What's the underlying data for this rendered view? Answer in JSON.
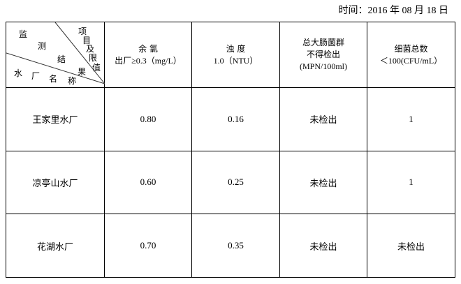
{
  "date": {
    "label": "时间：",
    "value": "2016 年 08 月 18 日"
  },
  "corner": {
    "chars_top": [
      "监",
      "测",
      "结",
      "果"
    ],
    "chars_right": [
      "项",
      "目",
      "及",
      "限",
      "值"
    ],
    "chars_bottom": [
      "水",
      "厂",
      "名",
      "称"
    ]
  },
  "headers": [
    {
      "line1": "余 氯",
      "line2": "出厂≥0.3（mg/L）"
    },
    {
      "line1": "浊 度",
      "line2": "1.0（NTU）"
    },
    {
      "line1": "总大肠菌群",
      "line2": "不得检出",
      "line3": "(MPN/100ml)"
    },
    {
      "line1": "细菌总数",
      "line2": "＜100(CFU/mL）"
    }
  ],
  "rows": [
    {
      "name": "王家里水厂",
      "values": [
        "0.80",
        "0.16",
        "未检出",
        "1"
      ]
    },
    {
      "name": "凉亭山水厂",
      "values": [
        "0.60",
        "0.25",
        "未检出",
        "1"
      ]
    },
    {
      "name": "花湖水厂",
      "values": [
        "0.70",
        "0.35",
        "未检出",
        "未检出"
      ]
    }
  ]
}
